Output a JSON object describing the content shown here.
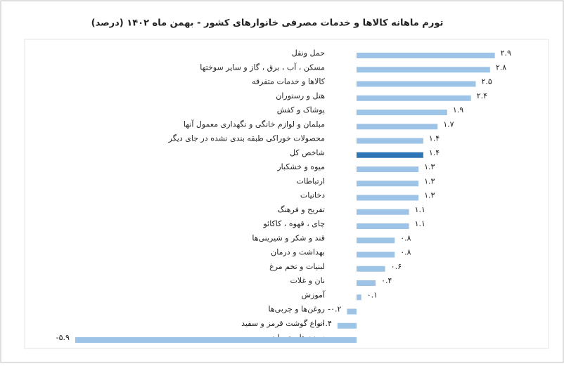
{
  "chart_data": {
    "type": "hbar",
    "title": "تورم ماهانه کالاها و خدمات مصرفی خانوارهای کشور - بهمن ماه ۱۴۰۲ (درصد)",
    "categories": [
      "حمل ونقل",
      "مسکن ، آب ، برق ، گاز و سایر سوختها",
      "کالاها و خدمات متفرقه",
      "هتل و رستوران",
      "پوشاک و کفش",
      "مبلمان و لوازم خانگی و نگهداری معمول آنها",
      "محصولات خوراکی طبقه بندی نشده در جای دیگر",
      "شاخص کل",
      "میوه و خشکبار",
      "ارتباطات",
      "دخانیات",
      "تفریح و فرهنگ",
      "چای ، قهوه ، کاکائو",
      "قند و شکر و شیرینی‌ها",
      "بهداشت و درمان",
      "لبنیات و تخم مرغ",
      "نان و غلات",
      "آموزش",
      "روغن‌ها و چربی‌ها",
      "انواع گوشت قرمز و سفید",
      "سبزی‌ها وحبوبات"
    ],
    "values": [
      2.9,
      2.8,
      2.5,
      2.4,
      1.9,
      1.7,
      1.4,
      1.4,
      1.3,
      1.3,
      1.3,
      1.1,
      1.1,
      0.8,
      0.8,
      0.6,
      0.4,
      0.1,
      -0.2,
      -0.4,
      -5.9
    ],
    "value_labels": [
      "۲.۹",
      "۲.۸",
      "۲.۵",
      "۲.۴",
      "۱.۹",
      "۱.۷",
      "۱.۴",
      "۱.۴",
      "۱.۳",
      "۱.۳",
      "۱.۳",
      "۱.۱",
      "۱.۱",
      "۰.۸",
      "۰.۸",
      "۰.۶",
      "۰.۴",
      "۰.۱",
      "-۰.۲",
      "-۰.۴",
      "-۵.۹"
    ],
    "color": "#9dc3e6",
    "highlight_color": "#2e75b6",
    "highlight_index": 7
  }
}
